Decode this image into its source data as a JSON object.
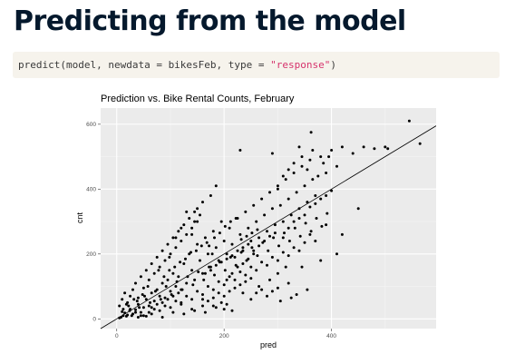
{
  "slide": {
    "title": "Predicting from the model"
  },
  "code": {
    "text_before": "predict(model, newdata = bikesFeb, type = ",
    "string_literal": "\"response\"",
    "text_after": ")"
  },
  "colors": {
    "title": "#05192d",
    "code_background": "#f6f3ec",
    "code_string": "#d6336c",
    "panel_background": "#ebebeb",
    "grid": "#ffffff",
    "points": "#000000"
  },
  "chart_data": {
    "type": "scatter",
    "title": "Prediction vs. Bike Rental Counts, February",
    "xlabel": "pred",
    "ylabel": "cnt",
    "xlim": [
      -30,
      595
    ],
    "ylim": [
      -30,
      650
    ],
    "x_ticks": [
      0,
      200,
      400
    ],
    "y_ticks": [
      0,
      200,
      400,
      600
    ],
    "reference_line": {
      "type": "identity",
      "slope": 1,
      "intercept": 0
    },
    "grid": true,
    "legend": "none",
    "points": [
      [
        8,
        5
      ],
      [
        12,
        10
      ],
      [
        5,
        3
      ],
      [
        15,
        18
      ],
      [
        20,
        12
      ],
      [
        25,
        30
      ],
      [
        18,
        8
      ],
      [
        10,
        22
      ],
      [
        30,
        15
      ],
      [
        22,
        40
      ],
      [
        35,
        28
      ],
      [
        40,
        45
      ],
      [
        28,
        10
      ],
      [
        45,
        20
      ],
      [
        50,
        35
      ],
      [
        55,
        60
      ],
      [
        38,
        55
      ],
      [
        60,
        40
      ],
      [
        65,
        80
      ],
      [
        48,
        75
      ],
      [
        70,
        55
      ],
      [
        75,
        90
      ],
      [
        80,
        70
      ],
      [
        58,
        100
      ],
      [
        85,
        110
      ],
      [
        90,
        65
      ],
      [
        95,
        120
      ],
      [
        100,
        85
      ],
      [
        105,
        140
      ],
      [
        110,
        100
      ],
      [
        78,
        150
      ],
      [
        115,
        130
      ],
      [
        120,
        90
      ],
      [
        125,
        170
      ],
      [
        130,
        110
      ],
      [
        135,
        200
      ],
      [
        140,
        150
      ],
      [
        145,
        120
      ],
      [
        150,
        230
      ],
      [
        155,
        180
      ],
      [
        98,
        190
      ],
      [
        160,
        140
      ],
      [
        165,
        250
      ],
      [
        170,
        200
      ],
      [
        175,
        160
      ],
      [
        180,
        270
      ],
      [
        185,
        220
      ],
      [
        190,
        180
      ],
      [
        195,
        300
      ],
      [
        200,
        240
      ],
      [
        205,
        200
      ],
      [
        210,
        280
      ],
      [
        215,
        230
      ],
      [
        220,
        190
      ],
      [
        225,
        310
      ],
      [
        230,
        260
      ],
      [
        235,
        210
      ],
      [
        240,
        330
      ],
      [
        245,
        280
      ],
      [
        250,
        240
      ],
      [
        255,
        350
      ],
      [
        260,
        300
      ],
      [
        265,
        250
      ],
      [
        270,
        370
      ],
      [
        275,
        320
      ],
      [
        280,
        270
      ],
      [
        285,
        390
      ],
      [
        290,
        340
      ],
      [
        295,
        290
      ],
      [
        300,
        410
      ],
      [
        305,
        350
      ],
      [
        310,
        300
      ],
      [
        315,
        430
      ],
      [
        320,
        370
      ],
      [
        325,
        320
      ],
      [
        330,
        450
      ],
      [
        335,
        390
      ],
      [
        340,
        340
      ],
      [
        345,
        470
      ],
      [
        350,
        410
      ],
      [
        355,
        360
      ],
      [
        360,
        490
      ],
      [
        365,
        430
      ],
      [
        370,
        380
      ],
      [
        380,
        500
      ],
      [
        390,
        450
      ],
      [
        400,
        520
      ],
      [
        410,
        470
      ],
      [
        420,
        530
      ],
      [
        440,
        510
      ],
      [
        460,
        530
      ],
      [
        480,
        525
      ],
      [
        500,
        530
      ],
      [
        505,
        525
      ],
      [
        545,
        610
      ],
      [
        565,
        540
      ],
      [
        362,
        575
      ],
      [
        340,
        530
      ],
      [
        290,
        510
      ],
      [
        230,
        520
      ],
      [
        150,
        340
      ],
      [
        145,
        300
      ],
      [
        130,
        330
      ],
      [
        120,
        280
      ],
      [
        160,
        360
      ],
      [
        140,
        260
      ],
      [
        175,
        380
      ],
      [
        110,
        250
      ],
      [
        155,
        320
      ],
      [
        185,
        410
      ],
      [
        120,
        50
      ],
      [
        140,
        30
      ],
      [
        160,
        60
      ],
      [
        180,
        40
      ],
      [
        200,
        30
      ],
      [
        215,
        25
      ],
      [
        235,
        80
      ],
      [
        250,
        60
      ],
      [
        265,
        100
      ],
      [
        285,
        120
      ],
      [
        300,
        140
      ],
      [
        320,
        110
      ],
      [
        345,
        160
      ],
      [
        380,
        180
      ],
      [
        410,
        200
      ],
      [
        390,
        290
      ],
      [
        370,
        240
      ],
      [
        420,
        260
      ],
      [
        450,
        340
      ],
      [
        360,
        260
      ],
      [
        5,
        40
      ],
      [
        10,
        60
      ],
      [
        15,
        80
      ],
      [
        20,
        50
      ],
      [
        25,
        70
      ],
      [
        30,
        90
      ],
      [
        35,
        110
      ],
      [
        40,
        65
      ],
      [
        45,
        130
      ],
      [
        50,
        95
      ],
      [
        55,
        150
      ],
      [
        60,
        120
      ],
      [
        65,
        170
      ],
      [
        70,
        140
      ],
      [
        75,
        190
      ],
      [
        80,
        160
      ],
      [
        85,
        210
      ],
      [
        90,
        180
      ],
      [
        95,
        230
      ],
      [
        100,
        200
      ],
      [
        105,
        250
      ],
      [
        110,
        220
      ],
      [
        115,
        270
      ],
      [
        120,
        240
      ],
      [
        125,
        290
      ],
      [
        130,
        260
      ],
      [
        135,
        310
      ],
      [
        140,
        280
      ],
      [
        145,
        330
      ],
      [
        150,
        300
      ],
      [
        60,
        20
      ],
      [
        70,
        30
      ],
      [
        80,
        25
      ],
      [
        90,
        40
      ],
      [
        100,
        35
      ],
      [
        110,
        55
      ],
      [
        120,
        45
      ],
      [
        130,
        70
      ],
      [
        140,
        60
      ],
      [
        150,
        85
      ],
      [
        160,
        75
      ],
      [
        170,
        100
      ],
      [
        180,
        90
      ],
      [
        190,
        115
      ],
      [
        200,
        105
      ],
      [
        210,
        130
      ],
      [
        220,
        120
      ],
      [
        230,
        145
      ],
      [
        240,
        135
      ],
      [
        250,
        160
      ],
      [
        260,
        150
      ],
      [
        270,
        175
      ],
      [
        280,
        165
      ],
      [
        290,
        190
      ],
      [
        300,
        180
      ],
      [
        310,
        205
      ],
      [
        320,
        195
      ],
      [
        330,
        220
      ],
      [
        340,
        210
      ],
      [
        350,
        235
      ],
      [
        50,
        10
      ],
      [
        65,
        15
      ],
      [
        85,
        5
      ],
      [
        105,
        20
      ],
      [
        125,
        15
      ],
      [
        145,
        25
      ],
      [
        165,
        20
      ],
      [
        185,
        35
      ],
      [
        195,
        50
      ],
      [
        205,
        45
      ],
      [
        12,
        30
      ],
      [
        18,
        45
      ],
      [
        24,
        25
      ],
      [
        32,
        60
      ],
      [
        42,
        35
      ],
      [
        52,
        70
      ],
      [
        62,
        50
      ],
      [
        72,
        85
      ],
      [
        82,
        60
      ],
      [
        92,
        100
      ],
      [
        102,
        75
      ],
      [
        112,
        115
      ],
      [
        122,
        90
      ],
      [
        132,
        130
      ],
      [
        142,
        105
      ],
      [
        152,
        145
      ],
      [
        162,
        120
      ],
      [
        172,
        160
      ],
      [
        182,
        135
      ],
      [
        192,
        175
      ],
      [
        202,
        150
      ],
      [
        212,
        190
      ],
      [
        222,
        165
      ],
      [
        232,
        205
      ],
      [
        242,
        180
      ],
      [
        252,
        220
      ],
      [
        262,
        195
      ],
      [
        272,
        235
      ],
      [
        282,
        210
      ],
      [
        292,
        250
      ],
      [
        302,
        225
      ],
      [
        312,
        265
      ],
      [
        322,
        240
      ],
      [
        332,
        280
      ],
      [
        342,
        255
      ],
      [
        352,
        295
      ],
      [
        362,
        270
      ],
      [
        372,
        310
      ],
      [
        382,
        285
      ],
      [
        392,
        325
      ],
      [
        172,
        225
      ],
      [
        182,
        250
      ],
      [
        192,
        265
      ],
      [
        202,
        285
      ],
      [
        212,
        300
      ],
      [
        222,
        310
      ],
      [
        232,
        245
      ],
      [
        242,
        255
      ],
      [
        252,
        265
      ],
      [
        262,
        275
      ],
      [
        165,
        140
      ],
      [
        175,
        150
      ],
      [
        185,
        165
      ],
      [
        195,
        175
      ],
      [
        205,
        185
      ],
      [
        215,
        195
      ],
      [
        225,
        210
      ],
      [
        235,
        220
      ],
      [
        245,
        230
      ],
      [
        255,
        200
      ],
      [
        88,
        130
      ],
      [
        98,
        150
      ],
      [
        108,
        160
      ],
      [
        118,
        175
      ],
      [
        128,
        185
      ],
      [
        138,
        205
      ],
      [
        148,
        210
      ],
      [
        158,
        225
      ],
      [
        168,
        235
      ],
      [
        178,
        200
      ],
      [
        40,
        5
      ],
      [
        45,
        10
      ],
      [
        55,
        8
      ],
      [
        35,
        20
      ],
      [
        65,
        35
      ],
      [
        75,
        45
      ],
      [
        85,
        50
      ],
      [
        95,
        60
      ],
      [
        105,
        70
      ],
      [
        115,
        80
      ],
      [
        205,
        120
      ],
      [
        215,
        140
      ],
      [
        225,
        160
      ],
      [
        235,
        170
      ],
      [
        245,
        185
      ],
      [
        255,
        210
      ],
      [
        265,
        225
      ],
      [
        275,
        240
      ],
      [
        285,
        255
      ],
      [
        295,
        265
      ],
      [
        310,
        250
      ],
      [
        320,
        280
      ],
      [
        330,
        300
      ],
      [
        340,
        310
      ],
      [
        350,
        320
      ],
      [
        360,
        345
      ],
      [
        370,
        355
      ],
      [
        380,
        370
      ],
      [
        390,
        380
      ],
      [
        400,
        395
      ],
      [
        300,
        400
      ],
      [
        310,
        440
      ],
      [
        320,
        460
      ],
      [
        330,
        480
      ],
      [
        345,
        500
      ],
      [
        355,
        460
      ],
      [
        365,
        520
      ],
      [
        375,
        440
      ],
      [
        385,
        480
      ],
      [
        395,
        500
      ],
      [
        160,
        40
      ],
      [
        170,
        55
      ],
      [
        180,
        65
      ],
      [
        190,
        80
      ],
      [
        200,
        70
      ],
      [
        210,
        85
      ],
      [
        220,
        95
      ],
      [
        230,
        105
      ],
      [
        240,
        115
      ],
      [
        250,
        125
      ],
      [
        280,
        70
      ],
      [
        290,
        85
      ],
      [
        300,
        95
      ],
      [
        260,
        80
      ],
      [
        270,
        90
      ],
      [
        325,
        65
      ],
      [
        335,
        75
      ],
      [
        355,
        90
      ],
      [
        305,
        55
      ],
      [
        315,
        160
      ]
    ]
  }
}
